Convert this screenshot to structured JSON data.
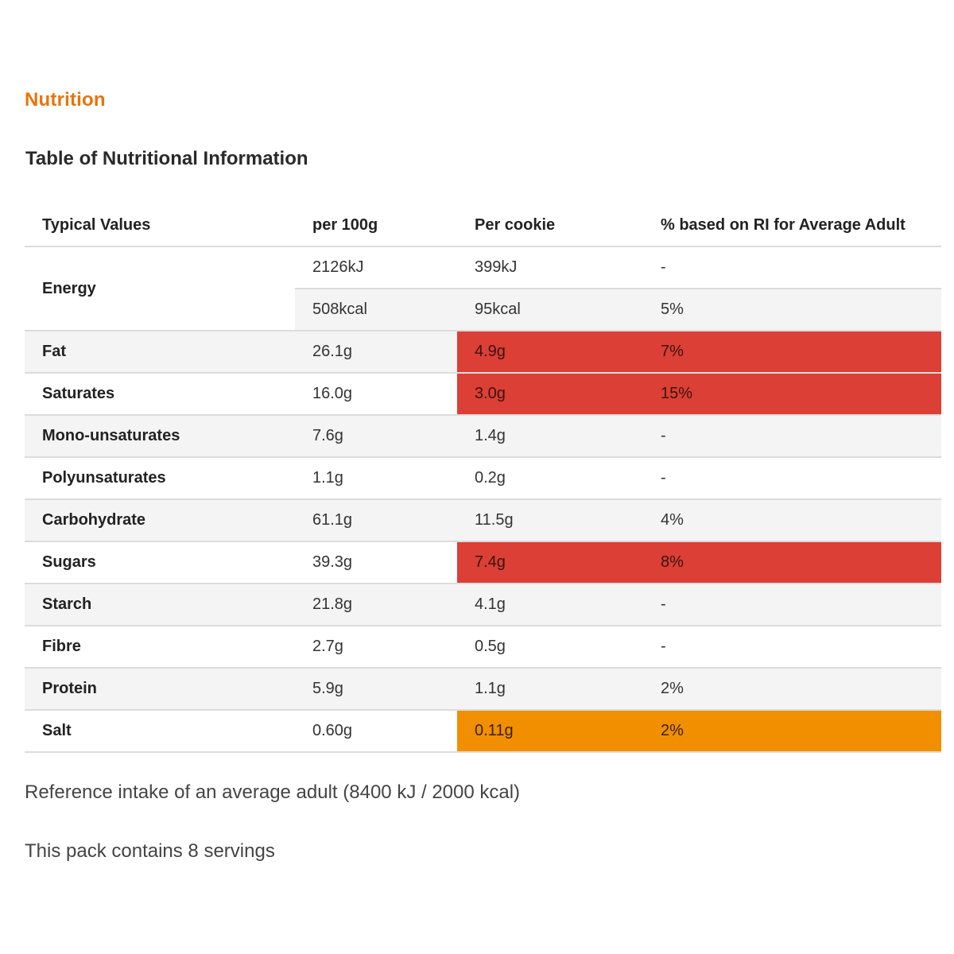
{
  "page": {
    "section_heading": "Nutrition",
    "table_title": "Table of Nutritional Information"
  },
  "colors": {
    "heading_orange": "#e8740c",
    "high_red": "#db3f35",
    "medium_amber": "#f28f00",
    "row_shade": "#f4f4f4"
  },
  "table": {
    "headers": [
      "Typical Values",
      "per 100g",
      "Per cookie",
      "% based on RI for Average Adult"
    ],
    "energy": {
      "label": "Energy",
      "kj": {
        "per100": "2126kJ",
        "per_cookie": "399kJ",
        "ri": "-"
      },
      "kcal": {
        "per100": "508kcal",
        "per_cookie": "95kcal",
        "ri": "5%"
      }
    },
    "rows": [
      {
        "label": "Fat",
        "per100": "26.1g",
        "per_cookie": "4.9g",
        "ri": "7%",
        "level": "high"
      },
      {
        "label": "Saturates",
        "per100": "16.0g",
        "per_cookie": "3.0g",
        "ri": "15%",
        "level": "high"
      },
      {
        "label": "Mono-unsaturates",
        "per100": "7.6g",
        "per_cookie": "1.4g",
        "ri": "-",
        "level": "none"
      },
      {
        "label": "Polyunsaturates",
        "per100": "1.1g",
        "per_cookie": "0.2g",
        "ri": "-",
        "level": "none"
      },
      {
        "label": "Carbohydrate",
        "per100": "61.1g",
        "per_cookie": "11.5g",
        "ri": "4%",
        "level": "none"
      },
      {
        "label": "Sugars",
        "per100": "39.3g",
        "per_cookie": "7.4g",
        "ri": "8%",
        "level": "high"
      },
      {
        "label": "Starch",
        "per100": "21.8g",
        "per_cookie": "4.1g",
        "ri": "-",
        "level": "none"
      },
      {
        "label": "Fibre",
        "per100": "2.7g",
        "per_cookie": "0.5g",
        "ri": "-",
        "level": "none"
      },
      {
        "label": "Protein",
        "per100": "5.9g",
        "per_cookie": "1.1g",
        "ri": "2%",
        "level": "none"
      },
      {
        "label": "Salt",
        "per100": "0.60g",
        "per_cookie": "0.11g",
        "ri": "2%",
        "level": "medium"
      }
    ]
  },
  "footer": {
    "reference_intake": "Reference intake of an average adult (8400 kJ / 2000 kcal)",
    "servings": "This pack contains 8 servings"
  }
}
